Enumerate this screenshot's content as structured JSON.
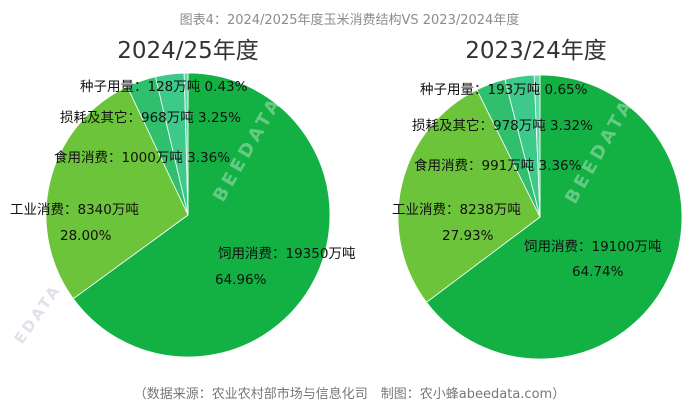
{
  "page_title": "图表4：2024/2025年度玉米消费结构VS 2023/2024年度",
  "source_note": "（数据来源：农业农村部市场与信息化司　制图：农小蜂abeedata.com）",
  "watermark": "BEEDATA",
  "colors": {
    "feed": "#13b043",
    "industrial": "#6cc43a",
    "food": "#2fbf6d",
    "loss": "#3dc98a",
    "seed": "#62d8a8",
    "edge": "#ffffff"
  },
  "chart_data": [
    {
      "type": "pie",
      "title": "2024/25年度",
      "slices": [
        {
          "name": "饲用消费",
          "value": 19350,
          "pct": 64.96,
          "label_line1": "饲用消费：19350万吨",
          "label_line2": "64.96%",
          "color": "#13b043"
        },
        {
          "name": "工业消费",
          "value": 8340,
          "pct": 28.0,
          "label_line1": "工业消费：8340万吨",
          "label_line2": "28.00%",
          "color": "#6cc43a"
        },
        {
          "name": "食用消费",
          "value": 1000,
          "pct": 3.36,
          "label_line1": "食用消费：1000万吨 3.36%",
          "label_line2": "",
          "color": "#2fbf6d"
        },
        {
          "name": "损耗及其它",
          "value": 968,
          "pct": 3.25,
          "label_line1": "损耗及其它：968万吨 3.25%",
          "label_line2": "",
          "color": "#3dc98a"
        },
        {
          "name": "种子用量",
          "value": 128,
          "pct": 0.43,
          "label_line1": "种子用量：128万吨 0.43%",
          "label_line2": "",
          "color": "#62d8a8"
        }
      ]
    },
    {
      "type": "pie",
      "title": "2023/24年度",
      "slices": [
        {
          "name": "饲用消费",
          "value": 19100,
          "pct": 64.74,
          "label_line1": "饲用消费：19100万吨",
          "label_line2": "64.74%",
          "color": "#13b043"
        },
        {
          "name": "工业消费",
          "value": 8238,
          "pct": 27.93,
          "label_line1": "工业消费：8238万吨",
          "label_line2": "27.93%",
          "color": "#6cc43a"
        },
        {
          "name": "食用消费",
          "value": 991,
          "pct": 3.36,
          "label_line1": "食用消费：991万吨 3.36%",
          "label_line2": "",
          "color": "#2fbf6d"
        },
        {
          "name": "损耗及其它",
          "value": 978,
          "pct": 3.32,
          "label_line1": "损耗及其它：978万吨 3.32%",
          "label_line2": "",
          "color": "#3dc98a"
        },
        {
          "name": "种子用量",
          "value": 193,
          "pct": 0.65,
          "label_line1": "种子用量：193万吨 0.65%",
          "label_line2": "",
          "color": "#62d8a8"
        }
      ]
    }
  ]
}
